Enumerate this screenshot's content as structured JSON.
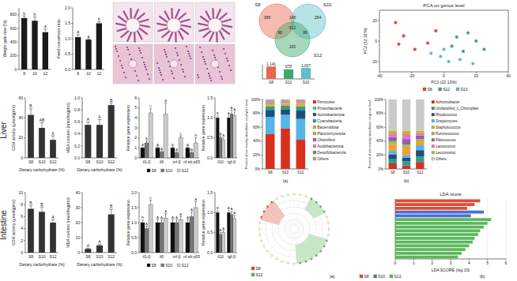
{
  "chart_data": [
    {
      "type": "bar",
      "ylabel": "Weight gain rate (%)",
      "categories": [
        "8",
        "10",
        "12"
      ],
      "series": [
        {
          "color": "#1a1a1a",
          "values": [
            752,
            712,
            545
          ],
          "errors": [
            30,
            55,
            45
          ],
          "letters": [
            "b",
            "b",
            "a"
          ]
        }
      ],
      "ylim": [
        0,
        900
      ],
      "yticks": [
        0,
        200,
        400,
        600,
        800
      ]
    },
    {
      "type": "bar",
      "ylabel": "Feed conversion ratio",
      "categories": [
        "8",
        "10",
        "12"
      ],
      "series": [
        {
          "color": "#1a1a1a",
          "values": [
            1.05,
            0.97,
            1.5
          ],
          "errors": [
            0.08,
            0.03,
            0.05
          ],
          "letters": [
            "a",
            "a",
            "b"
          ]
        }
      ],
      "ylim": [
        0,
        2
      ],
      "yticks": [
        {
          "value": 0,
          "label": "0.0"
        },
        0.5,
        {
          "value": 1,
          "label": "1.0"
        },
        1.5,
        {
          "value": 2,
          "label": "2.0"
        }
      ]
    },
    {
      "type": "bar",
      "ylabel": "GSH activity (μmol/gprot)",
      "xlabel": "Dietary carbohydrate (%)",
      "categories": [
        "S8",
        "S10",
        "S12"
      ],
      "series": [
        {
          "color": "#333333",
          "values": [
            43,
            30,
            18
          ],
          "errors": [
            6,
            5,
            4
          ],
          "letters": [
            "B",
            "AB",
            "A"
          ]
        }
      ],
      "ylim": [
        0,
        60
      ],
      "yticks": [
        0,
        20,
        40,
        60
      ]
    },
    {
      "type": "bar",
      "ylabel": "MDA content (nmol/mgprot)",
      "xlabel": "Dietary carbohydrate (%)",
      "categories": [
        "S8",
        "S10",
        "S12"
      ],
      "series": [
        {
          "color": "#333333",
          "values": [
            0.55,
            0.55,
            0.88
          ],
          "errors": [
            0.05,
            0.09,
            0.04
          ],
          "letters": [
            "A",
            "A",
            "B"
          ]
        }
      ],
      "ylim": [
        0,
        1
      ],
      "yticks": [
        {
          "value": 0,
          "label": "0.0"
        },
        0.2,
        0.4,
        0.6,
        0.8,
        {
          "value": 1,
          "label": "1.0"
        }
      ]
    },
    {
      "type": "bar",
      "ylabel": "Relative gene expression",
      "categories": [
        "il1-β",
        "il6",
        "tnf-β",
        "nf-κb p65"
      ],
      "legend": "bottom",
      "series": [
        {
          "name": "S8",
          "color": "#111111",
          "values": [
            1,
            1,
            1,
            1
          ],
          "errors": [
            0.05,
            0.1,
            0.1,
            0.1
          ],
          "letters": [
            "A",
            "A",
            "B",
            "A"
          ]
        },
        {
          "name": "S10",
          "color": "#777777",
          "values": [
            1.5,
            0.6,
            0.5,
            0.5
          ],
          "errors": [
            0.2,
            0.1,
            0.1,
            0.1
          ],
          "letters": [
            "B",
            "A",
            "A",
            "A"
          ]
        },
        {
          "name": "S12",
          "color": "#cccccc",
          "values": [
            4.5,
            4.4,
            2.0,
            1.5
          ],
          "errors": [
            0.4,
            1.1,
            0.2,
            0.5
          ],
          "letters": [
            "C",
            "B",
            "C",
            "B"
          ]
        }
      ],
      "ylim": [
        0,
        6
      ],
      "yticks": [
        0,
        1,
        2,
        3,
        4,
        5,
        6
      ]
    },
    {
      "type": "bar",
      "ylabel": "Relative gene expression",
      "categories": [
        "il10",
        "tgf-β"
      ],
      "series": [
        {
          "color": "#111111",
          "values": [
            1.0,
            1.0
          ],
          "errors": [
            0.05,
            0.05
          ],
          "letters": [
            "B",
            "A"
          ]
        },
        {
          "color": "#777777",
          "values": [
            0.5,
            1.1
          ],
          "errors": [
            0.05,
            0.1
          ],
          "letters": [
            "A",
            "A"
          ]
        },
        {
          "color": "#cccccc",
          "values": [
            0.45,
            1.05
          ],
          "errors": [
            0.05,
            0.1
          ],
          "letters": [
            "A",
            "A"
          ]
        }
      ],
      "ylim": [
        0,
        1.5
      ],
      "yticks": [
        {
          "value": 0,
          "label": "0.0"
        },
        0.5,
        {
          "value": 1,
          "label": "1.0"
        },
        1.5
      ]
    },
    {
      "type": "bar",
      "ylabel": "GSH activity (μmol/gprot)",
      "xlabel": "Dietary carbohydrate (%)",
      "categories": [
        "S8",
        "S10",
        "S12"
      ],
      "series": [
        {
          "color": "#333333",
          "values": [
            7.3,
            6.8,
            5.0
          ],
          "errors": [
            0.5,
            0.8,
            0.5
          ],
          "letters": [
            "B",
            "B",
            "A"
          ]
        }
      ],
      "ylim": [
        0,
        10
      ],
      "yticks": [
        0,
        2,
        4,
        6,
        8,
        10
      ]
    },
    {
      "type": "bar",
      "ylabel": "MDA content (nmol/mgprot)",
      "xlabel": "Dietary carbohydrate (%)",
      "categories": [
        "S8",
        "S10",
        "S12"
      ],
      "series": [
        {
          "color": "#333333",
          "values": [
            2.5,
            4.8,
            25.5
          ],
          "errors": [
            0.5,
            0.8,
            3.5
          ],
          "letters": [
            "A",
            "A",
            "B"
          ]
        }
      ],
      "ylim": [
        0,
        40
      ],
      "yticks": [
        0,
        10,
        20,
        30,
        40
      ]
    },
    {
      "type": "bar",
      "ylabel": "Relative gene expression",
      "categories": [
        "il1-β",
        "il6",
        "tnf-β",
        "nf-κb p65"
      ],
      "legend": "bottom",
      "series": [
        {
          "name": "S8",
          "color": "#111111",
          "values": [
            1,
            1,
            1,
            1
          ],
          "errors": [
            0.08,
            0.1,
            0.1,
            0.1
          ],
          "letters": [
            "B",
            "A",
            "A",
            "A"
          ]
        },
        {
          "name": "S10",
          "color": "#777777",
          "values": [
            0.8,
            1.0,
            1.0,
            1.2
          ],
          "errors": [
            0.08,
            0.1,
            0.1,
            0.15
          ],
          "letters": [
            "A",
            "A",
            "A",
            "A"
          ]
        },
        {
          "name": "S12",
          "color": "#cccccc",
          "values": [
            1.6,
            1.15,
            1.1,
            1.5
          ],
          "errors": [
            0.15,
            0.15,
            0.1,
            0.2
          ],
          "letters": [
            "C",
            "A",
            "A",
            "A"
          ]
        }
      ],
      "ylim": [
        0,
        2
      ],
      "yticks": [
        {
          "value": 0,
          "label": "0.0"
        },
        0.5,
        {
          "value": 1,
          "label": "1.0"
        },
        1.5,
        {
          "value": 2,
          "label": "2.0"
        }
      ]
    },
    {
      "type": "bar",
      "ylabel": "Relative gene expression",
      "categories": [
        "il10",
        "tgf-β"
      ],
      "series": [
        {
          "color": "#111111",
          "values": [
            1.0,
            1.0
          ],
          "errors": [
            0.05,
            0.05
          ],
          "letters": [
            "B",
            "A"
          ]
        },
        {
          "color": "#777777",
          "values": [
            0.45,
            0.95
          ],
          "errors": [
            0.05,
            0.08
          ],
          "letters": [
            "A",
            "A"
          ]
        },
        {
          "color": "#cccccc",
          "values": [
            0.5,
            0.85
          ],
          "errors": [
            0.05,
            0.08
          ],
          "letters": [
            "A",
            "A"
          ]
        }
      ],
      "ylim": [
        0,
        1.5
      ],
      "yticks": [
        {
          "value": 0,
          "label": "0.0"
        },
        0.5,
        {
          "value": 1,
          "label": "1.0"
        },
        1.5
      ]
    },
    {
      "type": "bar",
      "categories": [
        "S8",
        "S12",
        "S10"
      ],
      "colors": [
        "#e8664f",
        "#3fa96b",
        "#5bc0c8"
      ],
      "data_labels": true,
      "tick_labels": "x",
      "series": [
        {
          "values": [
            1141,
            878,
            1007
          ],
          "value_labels": [
            "1,141",
            "878",
            "1,007"
          ]
        }
      ],
      "ylim": [
        0,
        1300
      ]
    },
    {
      "type": "scatter",
      "title": "PCA on genus level",
      "xlabel": "PC1 (22.13%)",
      "ylabel": "PC2 (12.31%)",
      "legend": "bottom",
      "series": [
        {
          "name": "S8",
          "color": "#e34a33",
          "x": [
            -30,
            -25,
            -10,
            -18,
            -5,
            -28
          ],
          "values": [
            18,
            5,
            -2,
            -8,
            10,
            -3
          ]
        },
        {
          "name": "S12",
          "color": "#3fa96b",
          "x": [
            5,
            12,
            20,
            8,
            25,
            15
          ],
          "values": [
            -5,
            -10,
            0,
            4,
            -8,
            8
          ]
        },
        {
          "name": "S10",
          "color": "#5bc0c8",
          "x": [
            -2,
            3,
            -8,
            10,
            0,
            18
          ],
          "values": [
            -15,
            -20,
            -12,
            -18,
            -8,
            -22
          ]
        }
      ],
      "xlim": [
        -40,
        40
      ],
      "xticks": [
        -40,
        -20,
        0,
        20,
        40
      ],
      "ylim": [
        -30,
        30
      ],
      "yticks": [
        -20,
        0,
        20
      ]
    },
    {
      "type": "bar",
      "stacked": true,
      "legend": "right",
      "ylabel": "Percent of community abundance on phylum level",
      "categories": [
        "S8",
        "S10",
        "S12"
      ],
      "series": [
        {
          "name": "Firmicutes",
          "color": "#d7301f",
          "values": [
            50,
            58,
            42
          ]
        },
        {
          "name": "Proteobacteria",
          "color": "#56b4e9",
          "values": [
            25,
            20,
            30
          ]
        },
        {
          "name": "Actinobacteriota",
          "color": "#1f4e79",
          "values": [
            10,
            8,
            12
          ]
        },
        {
          "name": "Cyanobacteria",
          "color": "#2ca089",
          "values": [
            5,
            5,
            6
          ]
        },
        {
          "name": "Bacteroidota",
          "color": "#f0a030",
          "values": [
            3,
            3,
            4
          ]
        },
        {
          "name": "Planctomycetota",
          "color": "#8cc63f",
          "values": [
            2,
            1,
            1
          ]
        },
        {
          "name": "Chloroflexi",
          "color": "#9b59b6",
          "values": [
            1,
            1,
            1
          ]
        },
        {
          "name": "Acidobacteriota",
          "color": "#e377c2",
          "values": [
            1,
            1,
            1
          ]
        },
        {
          "name": "Desulfobacterota",
          "color": "#7f7f7f",
          "values": [
            1,
            1,
            1
          ]
        },
        {
          "name": "Others",
          "color": "#c49c94",
          "values": [
            2,
            2,
            2
          ]
        }
      ],
      "ylim": [
        0,
        100
      ],
      "yticks": [
        {
          "value": 0,
          "label": "0%"
        },
        {
          "value": 20,
          "label": "20%"
        },
        {
          "value": 40,
          "label": "40%"
        },
        {
          "value": 60,
          "label": "60%"
        },
        {
          "value": 80,
          "label": "80%"
        },
        {
          "value": 100,
          "label": "100%"
        }
      ]
    },
    {
      "type": "bar",
      "stacked": true,
      "legend": "right",
      "ylabel": "Percent of community abundance on genus level",
      "categories": [
        "S8",
        "S10",
        "S12"
      ],
      "series": [
        {
          "name": "Achromobacter",
          "color": "#d7301f",
          "values": [
            8,
            5,
            10
          ]
        },
        {
          "name": "Unclassified_c_Chloroplast",
          "color": "#2ca089",
          "values": [
            6,
            6,
            8
          ]
        },
        {
          "name": "Rhodococcus",
          "color": "#1f4e79",
          "values": [
            7,
            5,
            9
          ]
        },
        {
          "name": "Streptomyces",
          "color": "#56b4e9",
          "values": [
            5,
            4,
            7
          ]
        },
        {
          "name": "Staphylococcus",
          "color": "#f0a030",
          "values": [
            10,
            12,
            6
          ]
        },
        {
          "name": "Ruminococcus",
          "color": "#8cc63f",
          "values": [
            4,
            3,
            3
          ]
        },
        {
          "name": "Planococcus",
          "color": "#9b59b6",
          "values": [
            6,
            8,
            5
          ]
        },
        {
          "name": "Lactococcus",
          "color": "#e377c2",
          "values": [
            5,
            7,
            4
          ]
        },
        {
          "name": "Leuconostoc",
          "color": "#bcbd22",
          "values": [
            4,
            5,
            3
          ]
        },
        {
          "name": "Others",
          "color": "#c9c9c9",
          "values": [
            45,
            45,
            45
          ]
        }
      ],
      "ylim": [
        0,
        100
      ],
      "yticks": [
        {
          "value": 0,
          "label": "0%"
        },
        {
          "value": 20,
          "label": "20%"
        },
        {
          "value": 40,
          "label": "40%"
        },
        {
          "value": 60,
          "label": "60%"
        },
        {
          "value": 80,
          "label": "80%"
        },
        {
          "value": 100,
          "label": "100%"
        }
      ]
    },
    {
      "type": "bar",
      "orientation": "horizontal",
      "title": "LDA score",
      "xlabel": "LDA SCORE (log 10)",
      "grid": true,
      "legend": "bottom",
      "categories": [
        null,
        null,
        null,
        null,
        null,
        null,
        null,
        null,
        null,
        null,
        null,
        null,
        null,
        null,
        null,
        null
      ],
      "series": [
        {
          "name": "S8",
          "color": "#e34a33",
          "values": [
            4.6,
            4.3,
            3.9,
            null,
            null,
            null,
            null,
            null,
            null,
            null,
            null,
            null,
            null,
            null,
            null,
            null
          ]
        },
        {
          "name": "S10",
          "color": "#4a6fd1",
          "values": [
            null,
            null,
            null,
            4.8,
            4.1,
            null,
            null,
            null,
            null,
            null,
            null,
            null,
            null,
            null,
            null,
            null
          ]
        },
        {
          "name": "S12",
          "color": "#5cb85c",
          "values": [
            null,
            null,
            null,
            null,
            null,
            5.2,
            5.0,
            4.8,
            4.6,
            4.5,
            4.3,
            4.2,
            4.0,
            3.8,
            3.6,
            3.4
          ]
        }
      ],
      "xlim": [
        0,
        6
      ],
      "xticks": [
        0,
        1,
        2,
        3,
        4,
        5,
        6
      ]
    }
  ],
  "row_labels": [
    "Liver",
    "Intestine"
  ],
  "venn": {
    "sets": [
      {
        "name": "S8",
        "color": "#e8664f"
      },
      {
        "name": "S10",
        "color": "#5bc0c8"
      },
      {
        "name": "S12",
        "color": "#3fa96b"
      }
    ],
    "regions": [
      {
        "sets": [
          0
        ],
        "count": 386
      },
      {
        "sets": [
          1
        ],
        "count": 264
      },
      {
        "sets": [
          2
        ],
        "count": 182
      },
      {
        "sets": [
          0,
          1
        ],
        "count": 145
      },
      {
        "sets": [
          0,
          2
        ],
        "count": 98
      },
      {
        "sets": [
          1,
          2
        ],
        "count": 86
      },
      {
        "sets": [
          0,
          1,
          2
        ],
        "count": 512
      }
    ]
  },
  "cladogram": {
    "legend": [
      {
        "name": "S8",
        "color": "#e34a33"
      },
      {
        "name": "S12",
        "color": "#5cb85c"
      }
    ]
  },
  "panel_labels": [
    "(a)",
    "(b)",
    "(a)",
    "(b)"
  ]
}
